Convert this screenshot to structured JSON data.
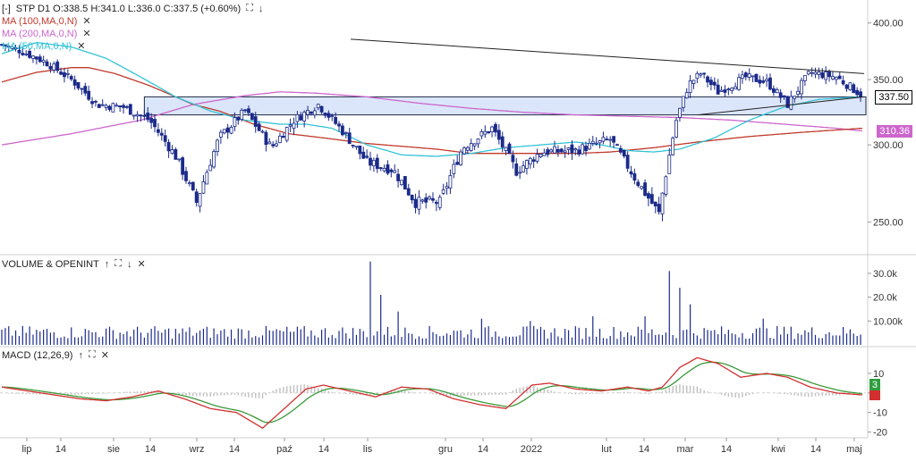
{
  "header": {
    "toggle": "[-]",
    "ohlc": "STP  D1  O:338.5  H:341.0  L:336.0  C:337.5  (+0.60%)",
    "ma_lines": [
      {
        "label": "MA (100,MA,0,N)",
        "color": "#c0392b"
      },
      {
        "label": "MA (200,MA,0,N)",
        "color": "#cc66cc"
      },
      {
        "label": "MA (50,MA,0,N)",
        "color": "#33c3d6"
      }
    ]
  },
  "panels": {
    "volume": {
      "title": "VOLUME & OPENINT"
    },
    "macd": {
      "title": "MACD (12,26,9)"
    }
  },
  "icons": {
    "up": "arrow-up-icon",
    "expand": "expand-icon",
    "down": "arrow-down-icon",
    "close": "close-icon"
  },
  "price_tags": {
    "last": {
      "text": "337.50",
      "color": "#000000"
    },
    "ma200": {
      "text": "310.36",
      "color": "#cc66cc"
    },
    "macd_top": {
      "text": "3",
      "color": "#2e9e3e"
    },
    "macd_bottom": {
      "text": "",
      "color": "#d32f2f"
    }
  },
  "chart_data": {
    "type": "candlestick",
    "price_axis": {
      "ticks": [
        400,
        350,
        300,
        250
      ],
      "labels": [
        "400.00",
        "350.00",
        "300.00",
        "250.00"
      ],
      "range": [
        240,
        410
      ],
      "scale": "log"
    },
    "volume_axis": {
      "ticks": [
        30000,
        20000,
        10000
      ],
      "labels": [
        "30.0k",
        "20.0k",
        "10.00k"
      ],
      "range": [
        0,
        36000
      ]
    },
    "macd_axis": {
      "ticks": [
        10,
        0,
        -10,
        -20
      ],
      "labels": [
        "10",
        "",
        "-10",
        "-20"
      ],
      "range": [
        -22,
        20
      ]
    },
    "x_labels": [
      "lip",
      "14",
      "sie",
      "14",
      "wrz",
      "14",
      "paź",
      "14",
      "lis",
      "gru",
      "14",
      "2022",
      "lut",
      "14",
      "mar",
      "14",
      "kwi",
      "14",
      "maj"
    ],
    "resistance_zone": [
      322,
      336
    ],
    "trendline_upper": [
      [
        392,
        385
      ],
      [
        966,
        355
      ]
    ],
    "trendline_lower": [
      [
        780,
        322
      ],
      [
        966,
        336
      ]
    ],
    "close_anchors": [
      [
        0,
        380
      ],
      [
        10,
        375
      ],
      [
        25,
        365
      ],
      [
        40,
        350
      ],
      [
        55,
        330
      ],
      [
        70,
        328
      ],
      [
        85,
        318
      ],
      [
        100,
        292
      ],
      [
        112,
        262
      ],
      [
        125,
        305
      ],
      [
        140,
        325
      ],
      [
        155,
        298
      ],
      [
        168,
        318
      ],
      [
        182,
        330
      ],
      [
        196,
        310
      ],
      [
        210,
        288
      ],
      [
        225,
        283
      ],
      [
        238,
        262
      ],
      [
        252,
        262
      ],
      [
        265,
        298
      ],
      [
        282,
        312
      ],
      [
        296,
        282
      ],
      [
        310,
        295
      ],
      [
        330,
        296
      ],
      [
        350,
        304
      ],
      [
        365,
        276
      ],
      [
        378,
        255
      ],
      [
        388,
        318
      ],
      [
        395,
        346
      ],
      [
        402,
        355
      ],
      [
        412,
        340
      ],
      [
        428,
        352
      ],
      [
        440,
        348
      ],
      [
        452,
        330
      ],
      [
        465,
        356
      ],
      [
        480,
        352
      ],
      [
        495,
        337
      ]
    ],
    "ma100_anchors": [
      [
        0,
        348
      ],
      [
        20,
        356
      ],
      [
        40,
        360
      ],
      [
        50,
        360
      ],
      [
        65,
        355
      ],
      [
        85,
        345
      ],
      [
        110,
        330
      ],
      [
        125,
        325
      ],
      [
        145,
        315
      ],
      [
        165,
        308
      ],
      [
        185,
        305
      ],
      [
        210,
        301
      ],
      [
        230,
        299
      ],
      [
        250,
        297
      ],
      [
        270,
        294
      ],
      [
        290,
        294
      ],
      [
        310,
        294
      ],
      [
        330,
        294
      ],
      [
        350,
        295
      ],
      [
        375,
        298
      ],
      [
        400,
        302
      ],
      [
        430,
        306
      ],
      [
        460,
        309
      ],
      [
        495,
        312
      ]
    ],
    "ma200_anchors": [
      [
        0,
        300
      ],
      [
        40,
        308
      ],
      [
        80,
        318
      ],
      [
        110,
        330
      ],
      [
        140,
        337
      ],
      [
        160,
        340
      ],
      [
        180,
        339
      ],
      [
        210,
        336
      ],
      [
        240,
        331
      ],
      [
        270,
        327
      ],
      [
        300,
        324
      ],
      [
        330,
        322
      ],
      [
        360,
        321
      ],
      [
        390,
        320
      ],
      [
        420,
        318
      ],
      [
        450,
        315
      ],
      [
        480,
        312
      ],
      [
        495,
        310
      ]
    ],
    "ma50_anchors": [
      [
        0,
        372
      ],
      [
        20,
        382
      ],
      [
        40,
        378
      ],
      [
        60,
        368
      ],
      [
        80,
        352
      ],
      [
        100,
        336
      ],
      [
        120,
        325
      ],
      [
        140,
        318
      ],
      [
        160,
        315
      ],
      [
        175,
        315
      ],
      [
        190,
        312
      ],
      [
        210,
        300
      ],
      [
        230,
        293
      ],
      [
        250,
        292
      ],
      [
        270,
        294
      ],
      [
        290,
        298
      ],
      [
        310,
        300
      ],
      [
        330,
        302
      ],
      [
        345,
        300
      ],
      [
        360,
        296
      ],
      [
        375,
        295
      ],
      [
        390,
        297
      ],
      [
        410,
        305
      ],
      [
        430,
        318
      ],
      [
        450,
        328
      ],
      [
        470,
        334
      ],
      [
        495,
        336
      ]
    ],
    "volume_spikes": [
      [
        212,
        35000
      ],
      [
        218,
        21000
      ],
      [
        228,
        14000
      ],
      [
        277,
        11000
      ],
      [
        305,
        10000
      ],
      [
        341,
        12000
      ],
      [
        370,
        12000
      ],
      [
        385,
        31000
      ],
      [
        390,
        24000
      ],
      [
        396,
        17000
      ],
      [
        438,
        11000
      ]
    ],
    "macd_anchors": [
      [
        0,
        3
      ],
      [
        15,
        1
      ],
      [
        30,
        -1
      ],
      [
        45,
        -3
      ],
      [
        60,
        -4
      ],
      [
        75,
        -2
      ],
      [
        90,
        1
      ],
      [
        105,
        -3
      ],
      [
        120,
        -8
      ],
      [
        135,
        -10
      ],
      [
        150,
        -18
      ],
      [
        160,
        -10
      ],
      [
        175,
        2
      ],
      [
        185,
        4
      ],
      [
        200,
        1
      ],
      [
        215,
        -2
      ],
      [
        230,
        3
      ],
      [
        245,
        2
      ],
      [
        260,
        -3
      ],
      [
        275,
        -6
      ],
      [
        290,
        -8
      ],
      [
        305,
        4
      ],
      [
        315,
        5
      ],
      [
        330,
        2
      ],
      [
        345,
        1
      ],
      [
        360,
        3
      ],
      [
        372,
        1
      ],
      [
        380,
        3
      ],
      [
        390,
        13
      ],
      [
        400,
        18
      ],
      [
        412,
        15
      ],
      [
        425,
        8
      ],
      [
        440,
        10
      ],
      [
        452,
        8
      ],
      [
        465,
        3
      ],
      [
        480,
        0
      ],
      [
        495,
        -1
      ]
    ]
  }
}
